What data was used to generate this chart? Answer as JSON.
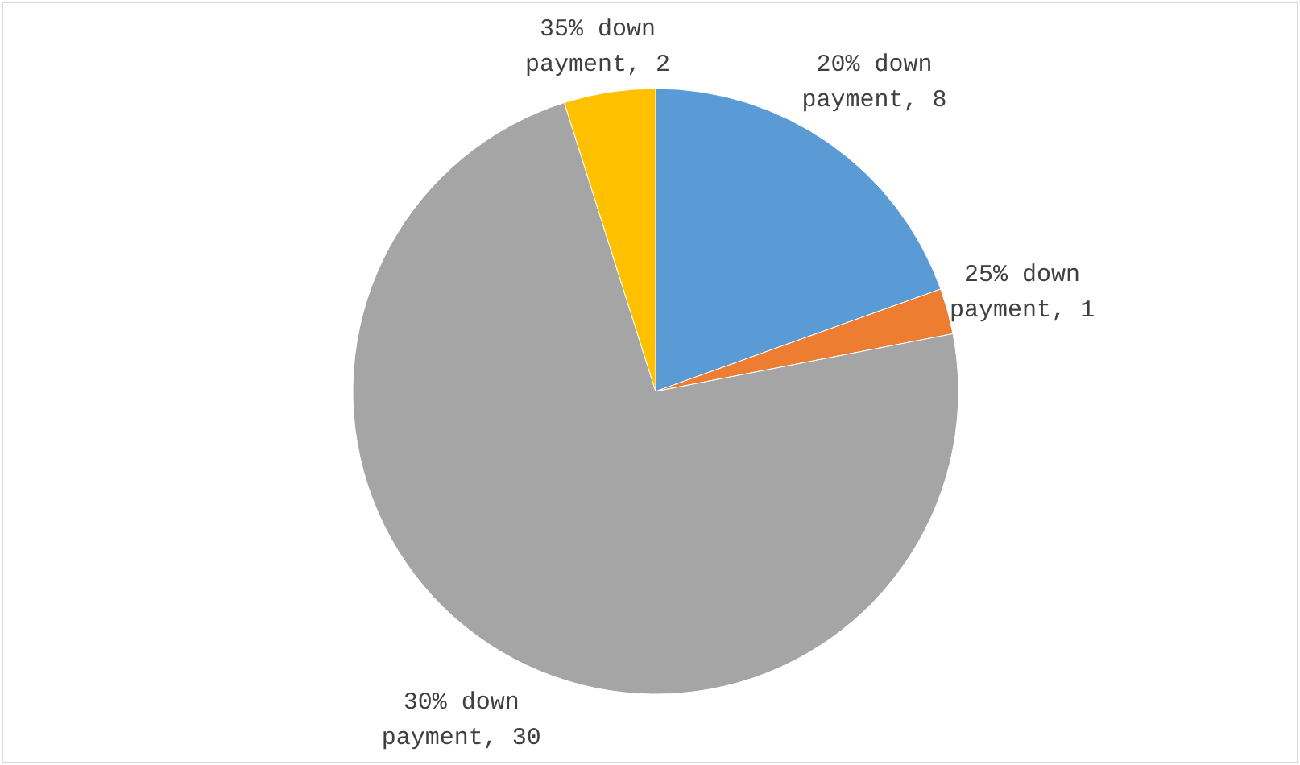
{
  "chart_data": {
    "type": "pie",
    "categories": [
      "20% down payment",
      "25% down payment",
      "30% down payment",
      "35% down payment"
    ],
    "values": [
      8,
      1,
      30,
      2
    ],
    "colors": [
      "#5b9bd5",
      "#ed7d31",
      "#a5a5a5",
      "#ffc000"
    ],
    "value_labels": [
      ", 8",
      ", 1",
      ", 30",
      ", 2"
    ]
  }
}
